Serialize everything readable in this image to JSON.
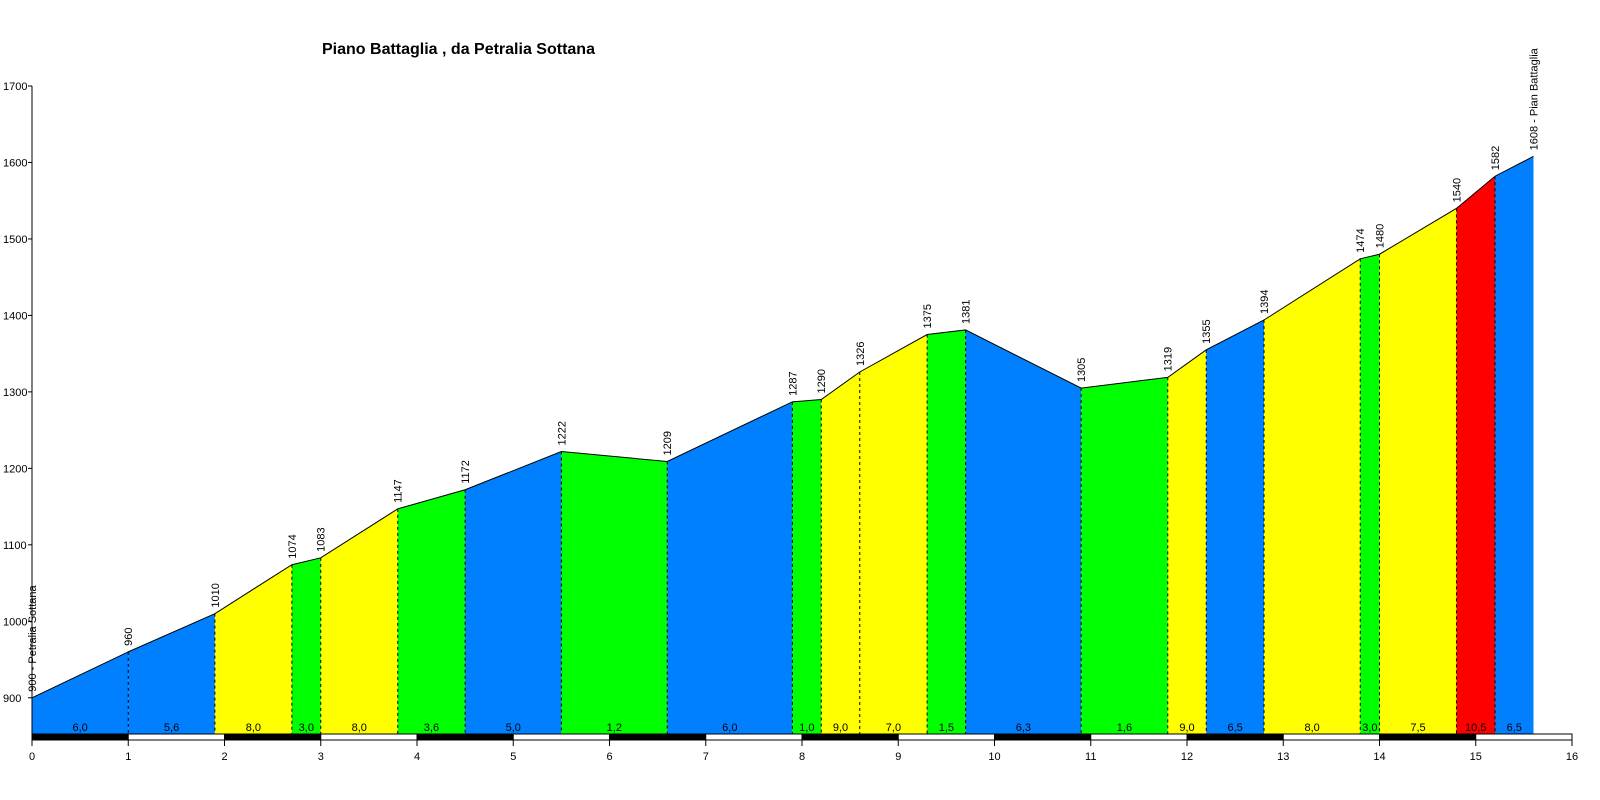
{
  "chart_data": {
    "type": "area",
    "title": "Piano Battaglia , da Petralia Sottana",
    "xlim": [
      0,
      16
    ],
    "ylim": [
      850,
      1700
    ],
    "x_ticks": [
      0,
      1,
      2,
      3,
      4,
      5,
      6,
      7,
      8,
      9,
      10,
      11,
      12,
      13,
      14,
      15,
      16
    ],
    "y_ticks": [
      900,
      1000,
      1100,
      1200,
      1300,
      1400,
      1500,
      1600,
      1700
    ],
    "points": [
      {
        "x": 0.0,
        "y": 900,
        "label": "900 - Petralia Sottana"
      },
      {
        "x": 1.0,
        "y": 960,
        "label": "960"
      },
      {
        "x": 1.9,
        "y": 1010,
        "label": "1010"
      },
      {
        "x": 2.7,
        "y": 1074,
        "label": "1074"
      },
      {
        "x": 3.0,
        "y": 1083,
        "label": "1083"
      },
      {
        "x": 3.8,
        "y": 1147,
        "label": "1147"
      },
      {
        "x": 4.5,
        "y": 1172,
        "label": "1172"
      },
      {
        "x": 5.5,
        "y": 1222,
        "label": "1222"
      },
      {
        "x": 6.6,
        "y": 1209,
        "label": "1209"
      },
      {
        "x": 7.9,
        "y": 1287,
        "label": "1287"
      },
      {
        "x": 8.2,
        "y": 1290,
        "label": "1290"
      },
      {
        "x": 8.6,
        "y": 1326,
        "label": "1326"
      },
      {
        "x": 9.3,
        "y": 1375,
        "label": "1375"
      },
      {
        "x": 9.7,
        "y": 1381,
        "label": "1381"
      },
      {
        "x": 10.9,
        "y": 1305,
        "label": "1305"
      },
      {
        "x": 11.8,
        "y": 1319,
        "label": "1319"
      },
      {
        "x": 12.2,
        "y": 1355,
        "label": "1355"
      },
      {
        "x": 12.8,
        "y": 1394,
        "label": "1394"
      },
      {
        "x": 13.8,
        "y": 1474,
        "label": "1474"
      },
      {
        "x": 14.0,
        "y": 1480,
        "label": "1480"
      },
      {
        "x": 14.8,
        "y": 1540,
        "label": "1540"
      },
      {
        "x": 15.2,
        "y": 1582,
        "label": "1582"
      },
      {
        "x": 15.6,
        "y": 1608,
        "label": "1608 - Pian Battaglia"
      }
    ],
    "segments": [
      {
        "grade": "6,0",
        "color": "#0080FF"
      },
      {
        "grade": "5,6",
        "color": "#0080FF"
      },
      {
        "grade": "8,0",
        "color": "#FFFF00"
      },
      {
        "grade": "3,0",
        "color": "#00FF00"
      },
      {
        "grade": "8,0",
        "color": "#FFFF00"
      },
      {
        "grade": "3,6",
        "color": "#00FF00"
      },
      {
        "grade": "5,0",
        "color": "#0080FF"
      },
      {
        "grade": "1,2",
        "color": "#00FF00"
      },
      {
        "grade": "6,0",
        "color": "#0080FF"
      },
      {
        "grade": "1,0",
        "color": "#00FF00"
      },
      {
        "grade": "9,0",
        "color": "#FFFF00"
      },
      {
        "grade": "7,0",
        "color": "#FFFF00"
      },
      {
        "grade": "1,5",
        "color": "#00FF00"
      },
      {
        "grade": "6,3",
        "color": "#0080FF"
      },
      {
        "grade": "1,6",
        "color": "#00FF00"
      },
      {
        "grade": "9,0",
        "color": "#FFFF00"
      },
      {
        "grade": "6,5",
        "color": "#0080FF"
      },
      {
        "grade": "8,0",
        "color": "#FFFF00"
      },
      {
        "grade": "3,0",
        "color": "#00FF00"
      },
      {
        "grade": "7,5",
        "color": "#FFFF00"
      },
      {
        "grade": "10,5",
        "color": "#FF0000"
      },
      {
        "grade": "6,5",
        "color": "#0080FF"
      }
    ]
  }
}
